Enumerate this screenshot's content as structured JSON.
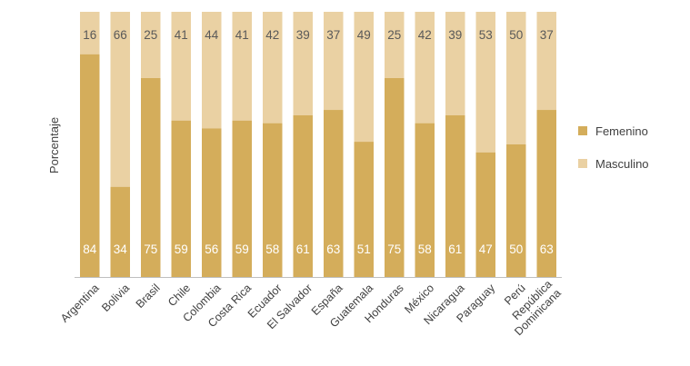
{
  "chart_data": {
    "type": "bar",
    "stacked": true,
    "ylabel": "Porcentaje",
    "ylim": [
      0,
      100
    ],
    "grid": false,
    "legend_position": "right",
    "categories": [
      "Argentina",
      "Bolivia",
      "Brasil",
      "Chile",
      "Colombia",
      "Costa Rica",
      "Ecuador",
      "El Salvador",
      "España",
      "Guatemala",
      "Honduras",
      "México",
      "Nicaragua",
      "Paraguay",
      "Perú",
      "República Dominicana"
    ],
    "category_lines": [
      [
        "Argentina"
      ],
      [
        "Bolivia"
      ],
      [
        "Brasil"
      ],
      [
        "Chile"
      ],
      [
        "Colombia"
      ],
      [
        "Costa Rica"
      ],
      [
        "Ecuador"
      ],
      [
        "El Salvador"
      ],
      [
        "España"
      ],
      [
        "Guatemala"
      ],
      [
        "Honduras"
      ],
      [
        "México"
      ],
      [
        "Nicaragua"
      ],
      [
        "Paraguay"
      ],
      [
        "Perú"
      ],
      [
        "República",
        "Dominicana"
      ]
    ],
    "series": [
      {
        "name": "Femenino",
        "color": "#d4ad5b",
        "values": [
          84,
          34,
          75,
          59,
          56,
          59,
          58,
          61,
          63,
          51,
          75,
          58,
          61,
          47,
          50,
          63
        ]
      },
      {
        "name": "Masculino",
        "color": "#ead1a3",
        "values": [
          16,
          66,
          25,
          41,
          44,
          41,
          42,
          39,
          37,
          49,
          25,
          42,
          39,
          53,
          50,
          37
        ]
      }
    ],
    "colors": {
      "axis": "#bfbfbf",
      "label_inside_dark": "#ffffff",
      "label_inside_light": "#595959",
      "text": "#404040"
    }
  }
}
